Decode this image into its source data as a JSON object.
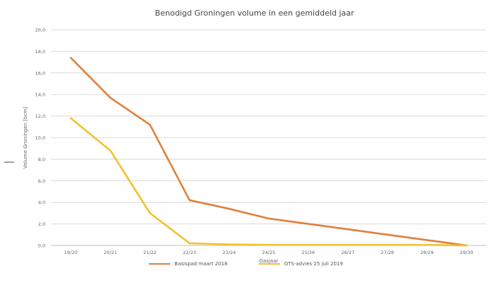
{
  "chart_data": {
    "type": "line",
    "title": "Benodigd Groningen volume in een gemiddeld jaar",
    "xlabel": "Gasjaar",
    "ylabel": "Volume Groningen [bcm]",
    "ylim": [
      0,
      20
    ],
    "yticks": [
      "0,0",
      "2,0",
      "4,0",
      "6,0",
      "8,0",
      "10,0",
      "12,0",
      "14,0",
      "16,0",
      "18,0",
      "20,0"
    ],
    "categories": [
      "19/20",
      "20/21",
      "21/22",
      "22/23",
      "23/24",
      "24/25",
      "25/26",
      "26/27",
      "27/28",
      "28/29",
      "29/30"
    ],
    "grid": true,
    "legend_position": "bottom",
    "series": [
      {
        "name": "Basispad maart 2018",
        "color": "#E0803C",
        "values": [
          17.4,
          13.7,
          11.2,
          4.2,
          3.4,
          2.5,
          2.0,
          1.5,
          1.0,
          0.5,
          0.0
        ]
      },
      {
        "name": "GTS-advies 25 juli 2019",
        "color": "#F2C12E",
        "values": [
          11.8,
          8.8,
          3.0,
          0.2,
          0.1,
          0.05,
          0.05,
          0.05,
          0.05,
          0.05,
          0.0
        ]
      }
    ]
  }
}
